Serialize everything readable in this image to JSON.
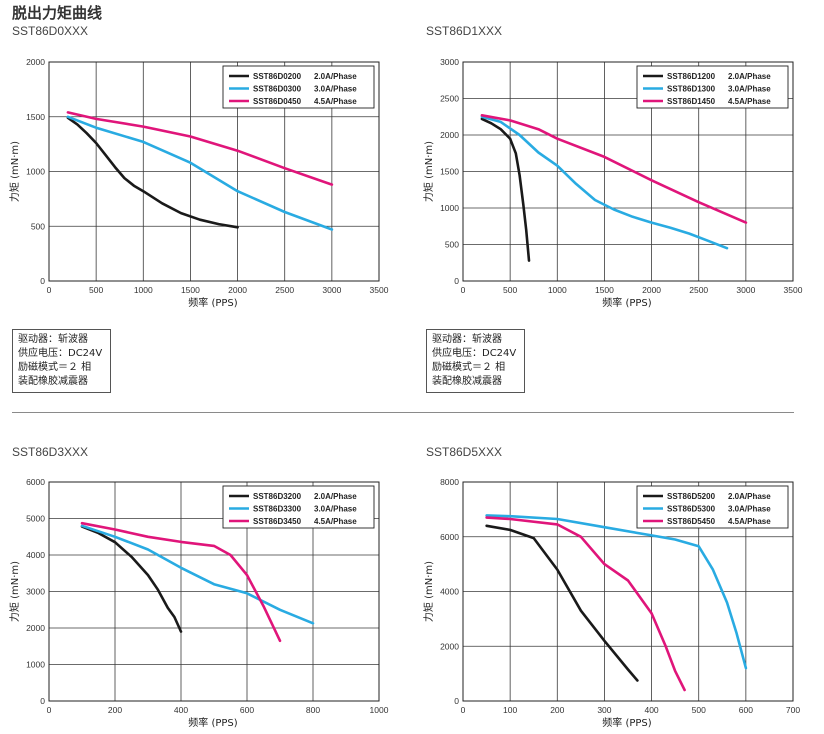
{
  "page_title": "脱出力矩曲线",
  "notes": [
    "驱动器：斩波器",
    "供应电压：DC24V",
    "励磁模式＝２ 相",
    "装配橡胶减震器"
  ],
  "chart_data": [
    {
      "type": "line",
      "title": "SST86D0XXX",
      "xlabel": "频率 (PPS)",
      "ylabel": "力矩 (mN·m)",
      "xlim": [
        0,
        3500
      ],
      "ylim": [
        0,
        2000
      ],
      "xticks": [
        0,
        500,
        1000,
        1500,
        2000,
        2500,
        3000,
        3500
      ],
      "yticks": [
        0,
        500,
        1000,
        1500,
        2000
      ],
      "grid": true,
      "legend": "top-right",
      "series": [
        {
          "name": "SST86D0200",
          "current": "2.0A/Phase",
          "color": "#1a1a1a",
          "points": [
            [
              200,
              1490
            ],
            [
              300,
              1430
            ],
            [
              400,
              1350
            ],
            [
              500,
              1260
            ],
            [
              600,
              1150
            ],
            [
              700,
              1040
            ],
            [
              800,
              940
            ],
            [
              900,
              870
            ],
            [
              1000,
              820
            ],
            [
              1200,
              710
            ],
            [
              1400,
              620
            ],
            [
              1600,
              560
            ],
            [
              1800,
              520
            ],
            [
              2000,
              490
            ]
          ]
        },
        {
          "name": "SST86D0300",
          "current": "3.0A/Phase",
          "color": "#29abe2",
          "points": [
            [
              200,
              1500
            ],
            [
              500,
              1400
            ],
            [
              1000,
              1270
            ],
            [
              1500,
              1080
            ],
            [
              2000,
              820
            ],
            [
              2500,
              630
            ],
            [
              3000,
              470
            ]
          ]
        },
        {
          "name": "SST86D0450",
          "current": "4.5A/Phase",
          "color": "#e0157a",
          "points": [
            [
              200,
              1540
            ],
            [
              500,
              1480
            ],
            [
              1000,
              1410
            ],
            [
              1500,
              1320
            ],
            [
              2000,
              1190
            ],
            [
              2500,
              1030
            ],
            [
              3000,
              880
            ]
          ]
        }
      ]
    },
    {
      "type": "line",
      "title": "SST86D1XXX",
      "xlabel": "频率 (PPS)",
      "ylabel": "力矩 (mN·m)",
      "xlim": [
        0,
        3500
      ],
      "ylim": [
        0,
        3000
      ],
      "xticks": [
        0,
        500,
        1000,
        1500,
        2000,
        2500,
        3000,
        3500
      ],
      "yticks": [
        0,
        500,
        1000,
        1500,
        2000,
        2500,
        3000
      ],
      "grid": true,
      "legend": "top-right",
      "series": [
        {
          "name": "SST86D1200",
          "current": "2.0A/Phase",
          "color": "#1a1a1a",
          "points": [
            [
              200,
              2220
            ],
            [
              300,
              2160
            ],
            [
              400,
              2080
            ],
            [
              500,
              1950
            ],
            [
              560,
              1750
            ],
            [
              600,
              1450
            ],
            [
              640,
              1050
            ],
            [
              670,
              700
            ],
            [
              700,
              280
            ]
          ]
        },
        {
          "name": "SST86D1300",
          "current": "3.0A/Phase",
          "color": "#29abe2",
          "points": [
            [
              200,
              2250
            ],
            [
              400,
              2180
            ],
            [
              600,
              2000
            ],
            [
              800,
              1760
            ],
            [
              1000,
              1580
            ],
            [
              1200,
              1330
            ],
            [
              1400,
              1110
            ],
            [
              1600,
              980
            ],
            [
              1800,
              880
            ],
            [
              2000,
              800
            ],
            [
              2200,
              730
            ],
            [
              2400,
              650
            ],
            [
              2600,
              550
            ],
            [
              2800,
              450
            ]
          ]
        },
        {
          "name": "SST86D1450",
          "current": "4.5A/Phase",
          "color": "#e0157a",
          "points": [
            [
              200,
              2270
            ],
            [
              500,
              2200
            ],
            [
              800,
              2080
            ],
            [
              1000,
              1950
            ],
            [
              1500,
              1700
            ],
            [
              2000,
              1380
            ],
            [
              2500,
              1080
            ],
            [
              3000,
              800
            ]
          ]
        }
      ]
    },
    {
      "type": "line",
      "title": "SST86D3XXX",
      "xlabel": "频率 (PPS)",
      "ylabel": "力矩 (mN·m)",
      "xlim": [
        0,
        1000
      ],
      "ylim": [
        0,
        6000
      ],
      "xticks": [
        0,
        200,
        400,
        600,
        800,
        1000
      ],
      "yticks": [
        0,
        1000,
        2000,
        3000,
        4000,
        5000,
        6000
      ],
      "grid": true,
      "legend": "top-right",
      "series": [
        {
          "name": "SST86D3200",
          "current": "2.0A/Phase",
          "color": "#1a1a1a",
          "points": [
            [
              100,
              4780
            ],
            [
              150,
              4600
            ],
            [
              200,
              4350
            ],
            [
              250,
              3950
            ],
            [
              300,
              3450
            ],
            [
              330,
              3050
            ],
            [
              360,
              2550
            ],
            [
              380,
              2300
            ],
            [
              400,
              1900
            ]
          ]
        },
        {
          "name": "SST86D3300",
          "current": "3.0A/Phase",
          "color": "#29abe2",
          "points": [
            [
              100,
              4800
            ],
            [
              200,
              4500
            ],
            [
              300,
              4150
            ],
            [
              400,
              3650
            ],
            [
              500,
              3200
            ],
            [
              600,
              2950
            ],
            [
              700,
              2500
            ],
            [
              800,
              2130
            ]
          ]
        },
        {
          "name": "SST86D3450",
          "current": "4.5A/Phase",
          "color": "#e0157a",
          "points": [
            [
              100,
              4870
            ],
            [
              200,
              4700
            ],
            [
              300,
              4500
            ],
            [
              400,
              4360
            ],
            [
              500,
              4250
            ],
            [
              550,
              4000
            ],
            [
              600,
              3450
            ],
            [
              650,
              2600
            ],
            [
              700,
              1650
            ]
          ]
        }
      ]
    },
    {
      "type": "line",
      "title": "SST86D5XXX",
      "xlabel": "频率 (PPS)",
      "ylabel": "力矩 (mN·m)",
      "xlim": [
        0,
        700
      ],
      "ylim": [
        0,
        8000
      ],
      "xticks": [
        0,
        100,
        200,
        300,
        400,
        500,
        600,
        700
      ],
      "yticks": [
        0,
        2000,
        4000,
        6000,
        8000
      ],
      "grid": true,
      "legend": "top-right",
      "series": [
        {
          "name": "SST86D5200",
          "current": "2.0A/Phase",
          "color": "#1a1a1a",
          "points": [
            [
              50,
              6400
            ],
            [
              100,
              6250
            ],
            [
              150,
              5950
            ],
            [
              200,
              4800
            ],
            [
              250,
              3300
            ],
            [
              300,
              2200
            ],
            [
              350,
              1150
            ],
            [
              370,
              750
            ]
          ]
        },
        {
          "name": "SST86D5300",
          "current": "3.0A/Phase",
          "color": "#29abe2",
          "points": [
            [
              50,
              6780
            ],
            [
              100,
              6750
            ],
            [
              200,
              6650
            ],
            [
              300,
              6350
            ],
            [
              400,
              6050
            ],
            [
              450,
              5900
            ],
            [
              500,
              5650
            ],
            [
              530,
              4800
            ],
            [
              560,
              3600
            ],
            [
              580,
              2500
            ],
            [
              600,
              1200
            ]
          ]
        },
        {
          "name": "SST86D5450",
          "current": "4.5A/Phase",
          "color": "#e0157a",
          "points": [
            [
              50,
              6700
            ],
            [
              100,
              6650
            ],
            [
              200,
              6450
            ],
            [
              250,
              6000
            ],
            [
              300,
              5000
            ],
            [
              350,
              4400
            ],
            [
              400,
              3200
            ],
            [
              430,
              2000
            ],
            [
              450,
              1100
            ],
            [
              470,
              400
            ]
          ]
        }
      ]
    }
  ]
}
